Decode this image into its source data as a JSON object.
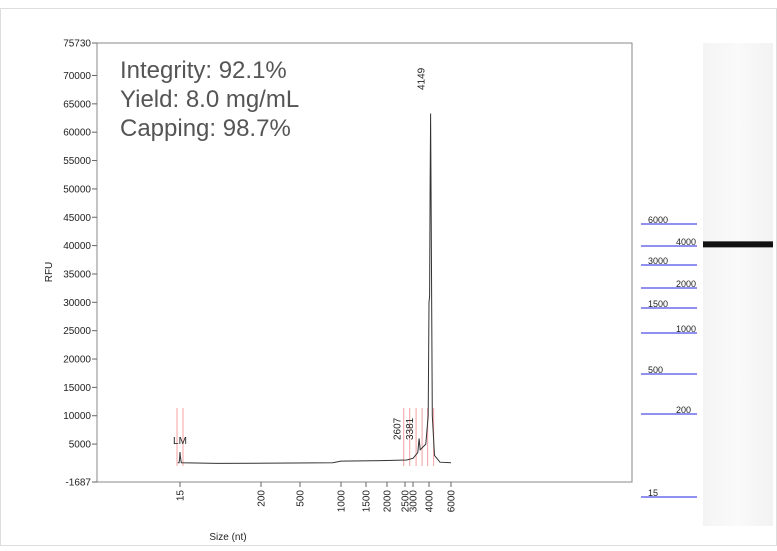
{
  "chart_data": {
    "type": "line",
    "annotations": [
      "Integrity: 92.1%",
      "Yield: 8.0 mg/mL",
      "Capping: 98.7%"
    ],
    "x_label": "Size (nt)",
    "y_label": "RFU",
    "ylim": [
      -1687,
      75730
    ],
    "yticks": [
      -1687,
      5000,
      10000,
      15000,
      20000,
      25000,
      30000,
      35000,
      40000,
      45000,
      50000,
      55000,
      60000,
      65000,
      70000,
      75730
    ],
    "xticks": [
      15,
      200,
      500,
      1000,
      1500,
      2000,
      2500,
      3000,
      4000,
      6000
    ],
    "series": [
      {
        "color": "#333333",
        "x": [
          10,
          13,
          14,
          15,
          16,
          18,
          100,
          900,
          1000,
          2000,
          2607,
          3000,
          3300,
          3381,
          3450,
          3800,
          3950,
          4000,
          4050,
          4100,
          4149,
          4200,
          4300,
          4500,
          5000,
          6000
        ],
        "values": [
          1700,
          1700,
          2500,
          3600,
          2800,
          1700,
          1600,
          1700,
          2000,
          2100,
          2200,
          2500,
          3500,
          6000,
          4000,
          5000,
          10000,
          30000,
          31000,
          50000,
          63300,
          45000,
          10000,
          3000,
          1800,
          1700
        ]
      }
    ],
    "peaks": [
      {
        "label": "LM",
        "x": 15,
        "color": "#e02020"
      },
      {
        "label": "2607",
        "x": 2607,
        "color": "#2020e0"
      },
      {
        "label": "3381",
        "x": 3381,
        "color": "#2020e0"
      },
      {
        "label": "4149",
        "x": 4149,
        "color": "#2020e0"
      }
    ],
    "ladder": [
      6000,
      4000,
      3000,
      2000,
      1500,
      1000,
      500,
      200,
      15
    ],
    "ladder_color": "#2020e0",
    "band": 4149
  }
}
